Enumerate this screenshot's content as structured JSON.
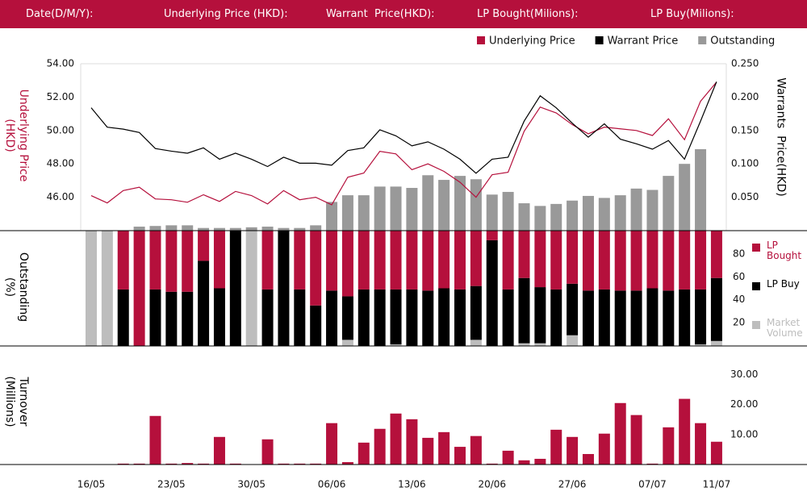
{
  "header": {
    "labels": [
      "Date(D/M/Y):",
      "Underlying Price (HKD):",
      "Warrant  Price(HKD):",
      "LP Bought(Milions):",
      "LP Buy(Milions):"
    ]
  },
  "chart_data": [
    {
      "type": "line",
      "ylabel": "Underlying Price (HKD)",
      "y2label": "Warrants  Price(HKD)",
      "ylim": [
        44,
        54
      ],
      "yticks": [
        {
          "value": 46,
          "label": "46.00"
        },
        {
          "value": 48,
          "label": "48.00"
        },
        {
          "value": 50,
          "label": "50.00"
        },
        {
          "value": 52,
          "label": "52.00"
        },
        {
          "value": 54,
          "label": "54.00"
        }
      ],
      "y2lim": [
        0,
        0.25
      ],
      "y2ticks": [
        {
          "value": 0.05,
          "label": "0.050"
        },
        {
          "value": 0.1,
          "label": "0.100"
        },
        {
          "value": 0.15,
          "label": "0.150"
        },
        {
          "value": 0.2,
          "label": "0.200"
        },
        {
          "value": 0.25,
          "label": "0.250"
        }
      ],
      "series": [
        {
          "name": "Underlying Price",
          "color": "#b5103c",
          "axis": "y",
          "values": [
            46.1,
            45.66,
            46.4,
            46.6,
            45.9,
            45.85,
            45.7,
            46.15,
            45.75,
            46.35,
            46.1,
            45.6,
            46.4,
            45.85,
            46.0,
            45.55,
            47.2,
            47.45,
            48.75,
            48.6,
            47.65,
            48.0,
            47.55,
            46.9,
            46.0,
            47.35,
            47.5,
            49.95,
            51.4,
            51.05,
            50.35,
            49.8,
            50.2,
            50.1,
            50.0,
            49.7,
            50.7,
            49.45,
            51.75,
            52.9
          ]
        },
        {
          "name": "Warrant  Price",
          "color": "#000000",
          "axis": "y2",
          "values": [
            0.184,
            0.155,
            0.152,
            0.147,
            0.123,
            0.119,
            0.116,
            0.124,
            0.107,
            0.116,
            0.107,
            0.096,
            0.11,
            0.101,
            0.101,
            0.098,
            0.12,
            0.124,
            0.151,
            0.142,
            0.127,
            0.133,
            0.122,
            0.107,
            0.086,
            0.107,
            0.11,
            0.164,
            0.202,
            0.184,
            0.161,
            0.14,
            0.16,
            0.137,
            0.13,
            0.122,
            0.135,
            0.107,
            0.164,
            0.223
          ]
        },
        {
          "name": "Outstanding",
          "color": "#999999",
          "axis": "y2",
          "type": "bar",
          "values": [
            null,
            null,
            null,
            0.006,
            0.007,
            0.008,
            0.008,
            0.004,
            0.004,
            0.004,
            0.005,
            0.006,
            0.004,
            0.004,
            0.008,
            0.043,
            0.053,
            0.053,
            0.066,
            0.066,
            0.064,
            0.083,
            0.076,
            0.082,
            0.077,
            0.054,
            0.058,
            0.041,
            0.037,
            0.04,
            0.045,
            0.052,
            0.049,
            0.053,
            0.063,
            0.061,
            0.082,
            0.1,
            0.122,
            null
          ]
        }
      ]
    },
    {
      "type": "stacked_bar",
      "ylabel": "Outstanding (%)",
      "ylim": [
        0,
        100
      ],
      "yticks": [
        20,
        40,
        60,
        80
      ],
      "series": [
        {
          "name": "LP Bought",
          "color": "#b5103c",
          "values": [
            0,
            0,
            51,
            100,
            51,
            53,
            53,
            26,
            50,
            0,
            0,
            51,
            0,
            51,
            65,
            52,
            57,
            51,
            51,
            51,
            51,
            52,
            50,
            51,
            48,
            8,
            51,
            41,
            49,
            51,
            46,
            52,
            51,
            52,
            52,
            50,
            52,
            51,
            51,
            41
          ]
        },
        {
          "name": "LP Buy",
          "color": "#000000",
          "values": [
            0,
            0,
            49,
            0,
            49,
            47,
            47,
            74,
            50,
            100,
            0,
            49,
            100,
            49,
            35,
            48,
            38,
            49,
            49,
            48,
            49,
            48,
            50,
            49,
            47,
            92,
            49,
            57,
            49,
            49,
            45,
            48,
            49,
            48,
            48,
            50,
            48,
            49,
            48,
            55
          ]
        },
        {
          "name": "Market Volume",
          "color": "#bdbdbd",
          "values": [
            100,
            100,
            0,
            0,
            0,
            0,
            0,
            0,
            0,
            0,
            100,
            0,
            0,
            0,
            0,
            0,
            5,
            0,
            0,
            1,
            0,
            0,
            0,
            0,
            5,
            0,
            0,
            2,
            2,
            0,
            9,
            0,
            0,
            0,
            0,
            0,
            0,
            0,
            1,
            4
          ]
        }
      ]
    },
    {
      "type": "bar",
      "ylabel": "Turnover (Millions)",
      "color": "#b5103c",
      "categories": [
        "16/05",
        null,
        null,
        null,
        null,
        "23/05",
        null,
        null,
        null,
        null,
        "30/05",
        null,
        null,
        null,
        null,
        "06/06",
        null,
        null,
        null,
        null,
        "13/06",
        null,
        null,
        null,
        null,
        "20/06",
        null,
        null,
        null,
        null,
        "27/06",
        null,
        null,
        null,
        null,
        "07/07",
        null,
        null,
        null,
        "11/07"
      ],
      "values": [
        0,
        0,
        0.3,
        0.3,
        16.2,
        0.3,
        0.5,
        0.3,
        9.2,
        0.3,
        0,
        8.4,
        0.3,
        0.3,
        0.3,
        13.8,
        0.8,
        7.3,
        11.9,
        17.0,
        15.1,
        8.9,
        10.8,
        5.9,
        9.5,
        0.3,
        4.6,
        1.4,
        1.9,
        11.6,
        9.2,
        3.5,
        10.3,
        20.5,
        16.5,
        0.3,
        12.4,
        21.9,
        13.8,
        7.6
      ],
      "ylim": [
        0,
        39
      ],
      "yticks": [
        {
          "value": 10,
          "label": "10.00"
        },
        {
          "value": 20,
          "label": "20.00"
        },
        {
          "value": 30,
          "label": "30.00"
        }
      ]
    }
  ]
}
